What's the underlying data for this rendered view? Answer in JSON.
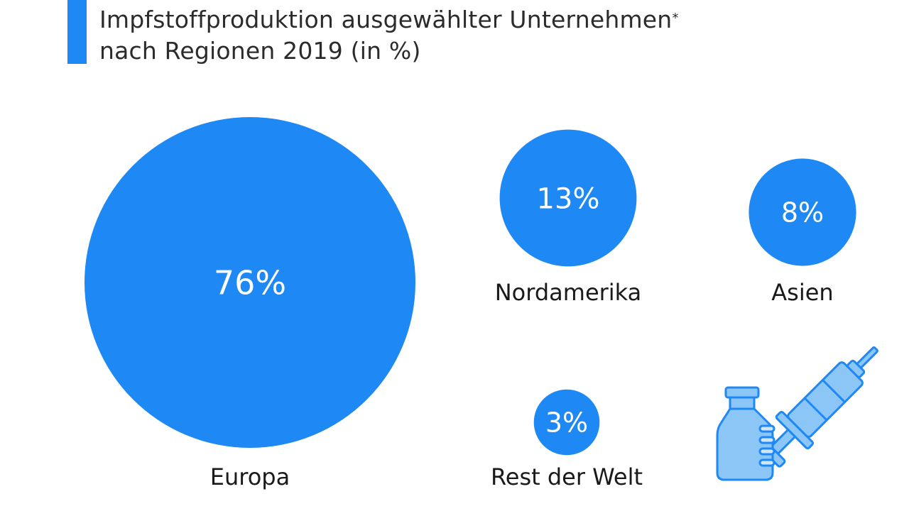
{
  "header": {
    "title_line1": "Impfstoffproduktion ausgewählter Unternehmen",
    "title_marker": "*",
    "title_line2": "nach Regionen 2019 (in %)"
  },
  "colors": {
    "accent": "#1e88f5",
    "bubble": "#1e88f5",
    "illustration_fill": "#8cc6f7",
    "illustration_stroke": "#1e88f5"
  },
  "illustration": {
    "icon": "vaccine-vial-syringe-icon"
  },
  "chart_data": {
    "type": "bubble",
    "unit": "%",
    "title": "Impfstoffproduktion ausgewählter Unternehmen* nach Regionen 2019 (in %)",
    "categories": [
      "Europa",
      "Nordamerika",
      "Asien",
      "Rest der Welt"
    ],
    "values": [
      76,
      13,
      8,
      3
    ],
    "value_labels": [
      "76%",
      "13%",
      "8%",
      "3%"
    ]
  }
}
